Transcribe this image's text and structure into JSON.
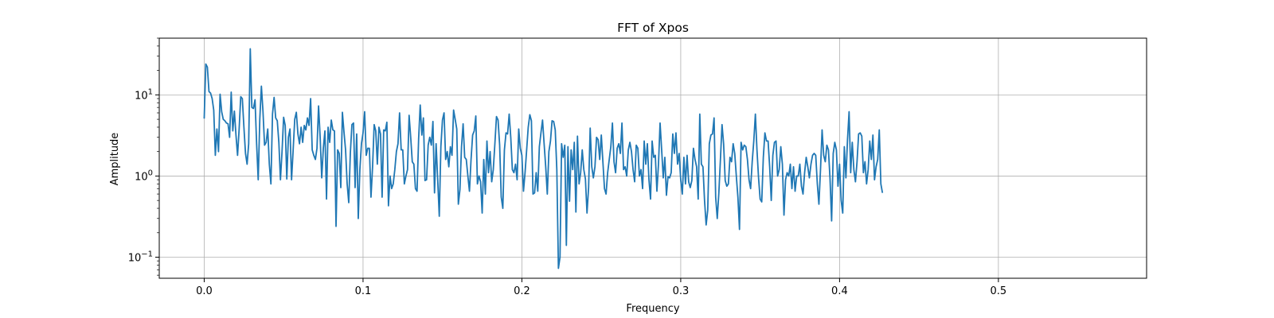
{
  "chart_data": {
    "type": "line",
    "title": "FFT of Xpos",
    "xlabel": "Frequency",
    "ylabel": "Amplitude",
    "yscale": "log",
    "xlim": [
      -0.0283,
      0.5933
    ],
    "ylim": [
      0.055,
      50
    ],
    "grid": true,
    "series_color": "#1f77b4",
    "x_ticks": [
      {
        "value": 0.0,
        "label": "0.0"
      },
      {
        "value": 0.1,
        "label": "0.1"
      },
      {
        "value": 0.2,
        "label": "0.2"
      },
      {
        "value": 0.3,
        "label": "0.3"
      },
      {
        "value": 0.4,
        "label": "0.4"
      },
      {
        "value": 0.5,
        "label": "0.5"
      }
    ],
    "y_ticks": [
      {
        "value": 10,
        "base": "10",
        "exp": "1"
      },
      {
        "value": 1,
        "base": "10",
        "exp": "0"
      },
      {
        "value": 0.1,
        "base": "10",
        "exp": "−1"
      }
    ],
    "x_start": 0.0,
    "x_step": 0.001,
    "y": [
      5.1,
      24,
      22,
      11,
      10.5,
      9,
      6.5,
      1.8,
      3.8,
      2,
      10.2,
      6.2,
      5,
      4.8,
      4.5,
      4.4,
      3,
      10.8,
      3.6,
      6.3,
      3.2,
      1.8,
      3.8,
      9.5,
      9,
      4,
      1.9,
      1.4,
      2.5,
      37,
      7,
      6.8,
      8.7,
      2.5,
      0.9,
      5,
      12.8,
      6.3,
      2.4,
      2.6,
      3.8,
      1.4,
      0.8,
      5.8,
      9.3,
      5.2,
      4.8,
      2.6,
      0.9,
      2,
      5.3,
      4.2,
      0.92,
      3,
      3.8,
      0.9,
      2.1,
      5,
      6.1,
      3.3,
      2.5,
      4,
      2.6,
      4.2,
      3.7,
      5.2,
      4.2,
      9,
      2.1,
      1.8,
      1.6,
      2.2,
      7.3,
      3,
      0.95,
      2.2,
      3.6,
      0.52,
      4,
      2.6,
      4.9,
      3.7,
      3.6,
      0.24,
      2.1,
      1.9,
      0.72,
      6.1,
      3.5,
      2.1,
      0.8,
      0.47,
      1.9,
      4.3,
      4.5,
      0.72,
      3.3,
      0.3,
      1.2,
      2.5,
      3.4,
      6.2,
      1.8,
      2.2,
      2.2,
      0.55,
      1.3,
      4.3,
      3.6,
      1.4,
      4,
      3.3,
      0.55,
      3.7,
      3.6,
      4.6,
      0.43,
      1,
      0.7,
      0.8,
      1.2,
      2,
      2.5,
      6,
      2.1,
      2.1,
      0.8,
      1,
      1.2,
      5.6,
      3,
      1.5,
      1.4,
      0.7,
      0.65,
      2.9,
      7.5,
      3.2,
      5.2,
      0.88,
      0.9,
      2.4,
      3,
      2.4,
      4.7,
      0.62,
      2.5,
      0.9,
      0.32,
      2.3,
      4.9,
      6,
      1.6,
      2,
      1.3,
      2.3,
      1.8,
      6.5,
      5,
      3.8,
      0.45,
      0.68,
      2.3,
      4.4,
      1.7,
      1.6,
      1,
      0.65,
      1.6,
      3.2,
      3.6,
      5.5,
      0.8,
      1,
      0.85,
      0.35,
      1.6,
      0.6,
      2.7,
      1.1,
      2,
      0.85,
      1.2,
      2.5,
      5.4,
      4.9,
      2.4,
      0.55,
      0.4,
      2.1,
      3.4,
      3.3,
      5.8,
      3,
      1.2,
      1.1,
      1.4,
      0.9,
      3.8,
      2.2,
      1.8,
      0.65,
      1.1,
      2.1,
      4,
      5.7,
      4.8,
      0.6,
      0.62,
      1.1,
      0.65,
      2.3,
      3.4,
      4.9,
      2.5,
      1.3,
      0.6,
      2,
      2.7,
      4.8,
      4.7,
      3.7,
      1.2,
      0.073,
      0.1,
      2.5,
      1.7,
      2.4,
      0.14,
      2.3,
      0.49,
      2.1,
      1.2,
      2.6,
      0.36,
      3.1,
      0.8,
      1.1,
      2.1,
      1.2,
      0.92,
      0.35,
      0.72,
      3.9,
      1.3,
      0.95,
      1.3,
      3,
      2.8,
      1.6,
      3.2,
      1.5,
      0.7,
      0.6,
      1.1,
      1.6,
      2.3,
      4.5,
      1.5,
      1.1,
      2.2,
      2.5,
      1.9,
      4.5,
      1.2,
      1.3,
      1,
      2.1,
      2.6,
      2,
      1.2,
      0.85,
      2.4,
      2.2,
      1,
      1.2,
      0.7,
      2.7,
      1.4,
      2.5,
      0.9,
      0.52,
      2.7,
      1.7,
      1.8,
      0.65,
      1.4,
      4.5,
      2.1,
      0.95,
      1.7,
      0.58,
      0.98,
      0.95,
      1.1,
      3.3,
      1.9,
      3.4,
      1.4,
      1.9,
      0.9,
      0.6,
      1.7,
      0.8,
      1.8,
      0.85,
      0.72,
      0.88,
      2.2,
      1.6,
      1.3,
      0.52,
      5.8,
      1.4,
      1.3,
      0.5,
      0.25,
      0.38,
      2.5,
      3.2,
      3.3,
      5.2,
      0.55,
      0.3,
      0.62,
      1.6,
      4.3,
      2.5,
      0.88,
      0.75,
      0.8,
      1.7,
      1.5,
      2.5,
      1.9,
      1,
      0.55,
      0.22,
      2.6,
      2.1,
      2.4,
      2.3,
      1.6,
      0.9,
      0.7,
      1.5,
      2.7,
      5.8,
      2.1,
      0.95,
      0.52,
      0.48,
      1.7,
      3.4,
      2.7,
      2.7,
      1.3,
      0.5,
      1.8,
      2.6,
      2.7,
      1,
      1.2,
      2.3,
      1.4,
      0.33,
      0.9,
      1.1,
      1,
      1.4,
      0.7,
      1.3,
      0.65,
      1,
      1,
      1.4,
      0.75,
      0.6,
      1.1,
      1.7,
      1.3,
      0.95,
      1.4,
      1.8,
      1.9,
      1.8,
      0.8,
      0.45,
      1.2,
      3.7,
      1.8,
      1.5,
      2.4,
      2.1,
      0.92,
      0.28,
      1.9,
      2.6,
      2.1,
      0.75,
      1.4,
      0.5,
      0.35,
      2.3,
      0.95,
      2.8,
      6.2,
      1.1,
      2.6,
      1.2,
      0.85,
      1.5,
      3.3,
      3.4,
      3.1,
      1.1,
      1.5,
      0.8,
      1.2,
      2.7,
      1.6,
      3.2,
      0.9,
      1.3,
      1.6,
      3.7,
      0.8,
      0.62
    ]
  }
}
